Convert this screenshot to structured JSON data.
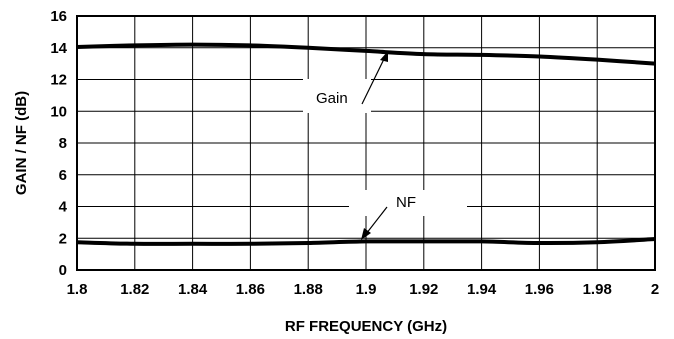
{
  "chart_data": {
    "type": "line",
    "xlabel": "RF FREQUENCY (GHz)",
    "ylabel": "GAIN / NF (dB)",
    "xlim": [
      1.8,
      2.0
    ],
    "ylim": [
      0,
      16
    ],
    "x_ticks": [
      "1.8",
      "1.82",
      "1.84",
      "1.86",
      "1.88",
      "1.9",
      "1.92",
      "1.94",
      "1.96",
      "1.98",
      "2"
    ],
    "y_ticks": [
      "0",
      "2",
      "4",
      "6",
      "8",
      "10",
      "12",
      "14",
      "16"
    ],
    "grid": true,
    "series": [
      {
        "name": "Gain",
        "x": [
          1.8,
          1.82,
          1.84,
          1.86,
          1.88,
          1.9,
          1.92,
          1.94,
          1.96,
          1.98,
          2.0
        ],
        "y": [
          14.05,
          14.15,
          14.2,
          14.15,
          14.0,
          13.8,
          13.6,
          13.55,
          13.45,
          13.25,
          13.0
        ]
      },
      {
        "name": "NF",
        "x": [
          1.8,
          1.82,
          1.84,
          1.86,
          1.88,
          1.9,
          1.92,
          1.94,
          1.96,
          1.98,
          2.0
        ],
        "y": [
          1.75,
          1.65,
          1.65,
          1.65,
          1.7,
          1.8,
          1.8,
          1.8,
          1.7,
          1.75,
          1.95
        ]
      }
    ],
    "annotations": [
      {
        "text": "Gain",
        "series": "Gain",
        "x_at": 1.905
      },
      {
        "text": "NF",
        "series": "NF",
        "x_at": 1.9
      }
    ]
  }
}
